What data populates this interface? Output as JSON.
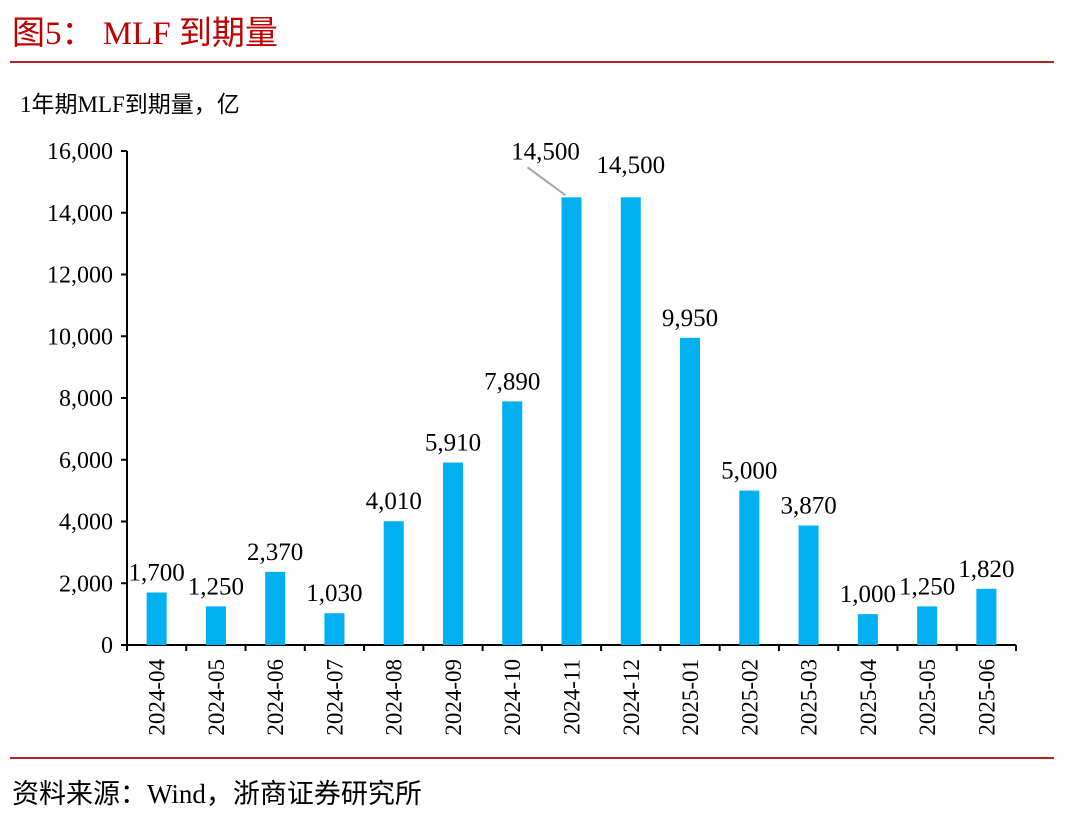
{
  "figure": {
    "title": "图5： MLF 到期量",
    "source": "资料来源：Wind，浙商证券研究所"
  },
  "colors": {
    "bar": "#00b0f0",
    "accent_red": "#c00000",
    "axis": "#000000",
    "leader": "#a6a6a6"
  },
  "chart_data": {
    "type": "bar",
    "title": "",
    "ylabel": "1年期MLF到期量，亿",
    "xlabel": "",
    "ylim": [
      0,
      16000
    ],
    "yticks": [
      0,
      2000,
      4000,
      6000,
      8000,
      10000,
      12000,
      14000,
      16000
    ],
    "ytick_labels": [
      "0",
      "2,000",
      "4,000",
      "6,000",
      "8,000",
      "10,000",
      "12,000",
      "14,000",
      "16,000"
    ],
    "grid": false,
    "legend": "none",
    "categories": [
      "2024-04",
      "2024-05",
      "2024-06",
      "2024-07",
      "2024-08",
      "2024-09",
      "2024-10",
      "2024-11",
      "2024-12",
      "2025-01",
      "2025-02",
      "2025-03",
      "2025-04",
      "2025-05",
      "2025-06"
    ],
    "values": [
      1700,
      1250,
      2370,
      1030,
      4010,
      5910,
      7890,
      14500,
      14500,
      9950,
      5000,
      3870,
      1000,
      1250,
      1820
    ],
    "data_labels": [
      "1,700",
      "1,250",
      "2,370",
      "1,030",
      "4,010",
      "5,910",
      "7,890",
      "14,500",
      "14,500",
      "9,950",
      "5,000",
      "3,870",
      "1,000",
      "1,250",
      "1,820"
    ]
  }
}
